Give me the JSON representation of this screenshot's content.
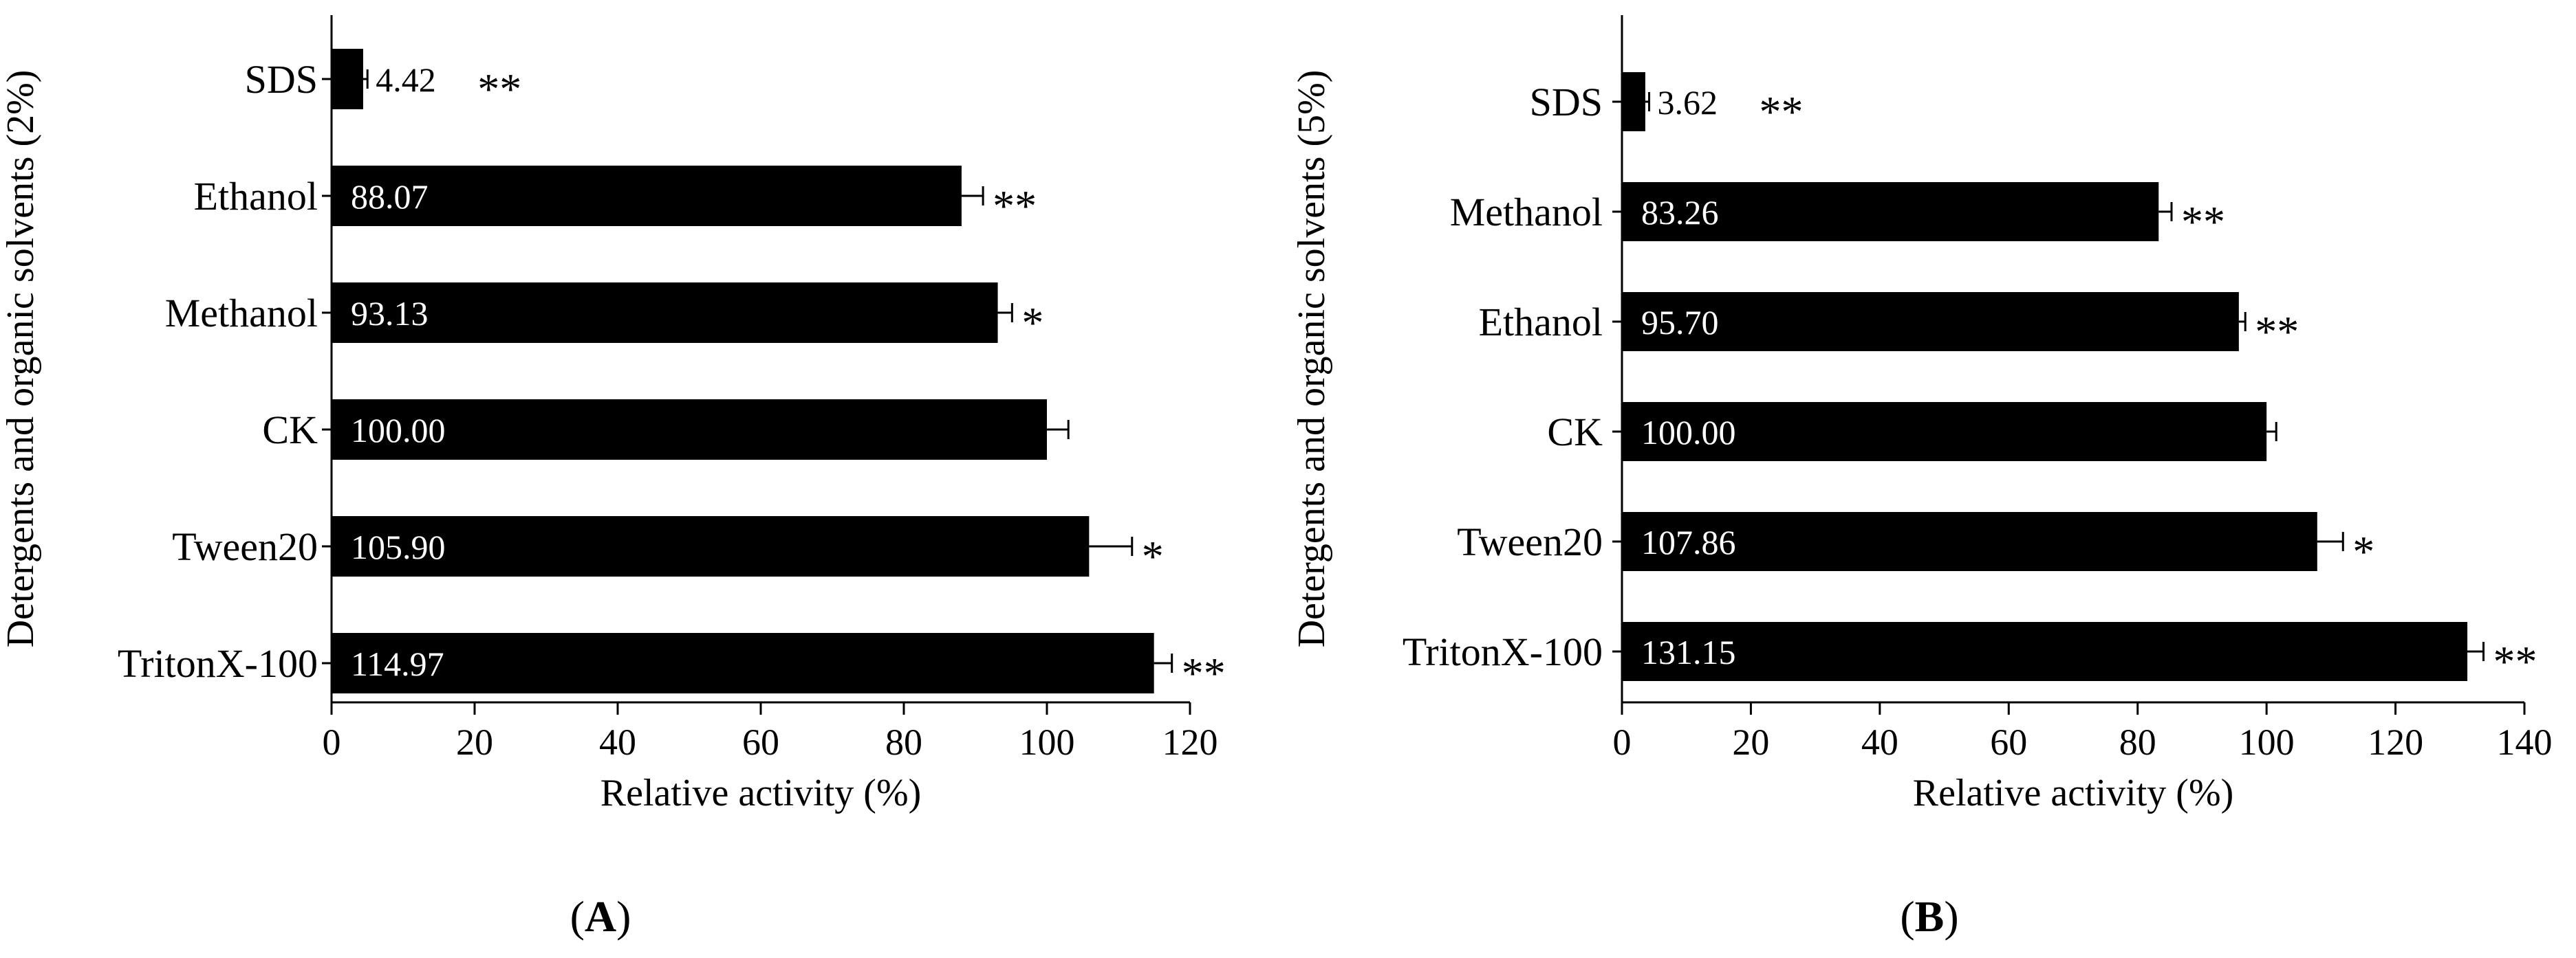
{
  "chart_data": [
    {
      "type": "bar",
      "orientation": "horizontal",
      "panel_label": "A",
      "xlabel": "Relative activity (%)",
      "ylabel": "Detergents and organic solvents (2%)",
      "xlim": [
        0,
        120
      ],
      "xticks": [
        "0",
        "20",
        "40",
        "60",
        "80",
        "100",
        "120"
      ],
      "categories": [
        "SDS",
        "Ethanol",
        "Methanol",
        "CK",
        "Tween20",
        "TritonX-100"
      ],
      "values": [
        4.42,
        88.07,
        93.13,
        100.0,
        105.9,
        114.97
      ],
      "value_labels": [
        "4.42",
        "88.07",
        "93.13",
        "100.00",
        "105.90",
        "114.97"
      ],
      "errors": [
        0.6,
        3.0,
        2.0,
        3.0,
        6.0,
        2.5
      ],
      "significance": [
        "**",
        "**",
        "*",
        "",
        "*",
        "**"
      ]
    },
    {
      "type": "bar",
      "orientation": "horizontal",
      "panel_label": "B",
      "xlabel": "Relative activity (%)",
      "ylabel": "Detergents and organic solvents (5%)",
      "xlim": [
        0,
        140
      ],
      "xticks": [
        "0",
        "20",
        "40",
        "60",
        "80",
        "100",
        "120",
        "140"
      ],
      "categories": [
        "SDS",
        "Methanol",
        "Ethanol",
        "CK",
        "Tween20",
        "TritonX-100"
      ],
      "values": [
        3.62,
        83.26,
        95.7,
        100.0,
        107.86,
        131.15
      ],
      "value_labels": [
        "3.62",
        "83.26",
        "95.70",
        "100.00",
        "107.86",
        "131.15"
      ],
      "errors": [
        0.6,
        2.0,
        1.0,
        1.5,
        4.0,
        2.5
      ],
      "significance": [
        "**",
        "**",
        "**",
        "",
        "*",
        "**"
      ]
    }
  ],
  "captions": {
    "a": "(A)",
    "b": "(B)"
  }
}
